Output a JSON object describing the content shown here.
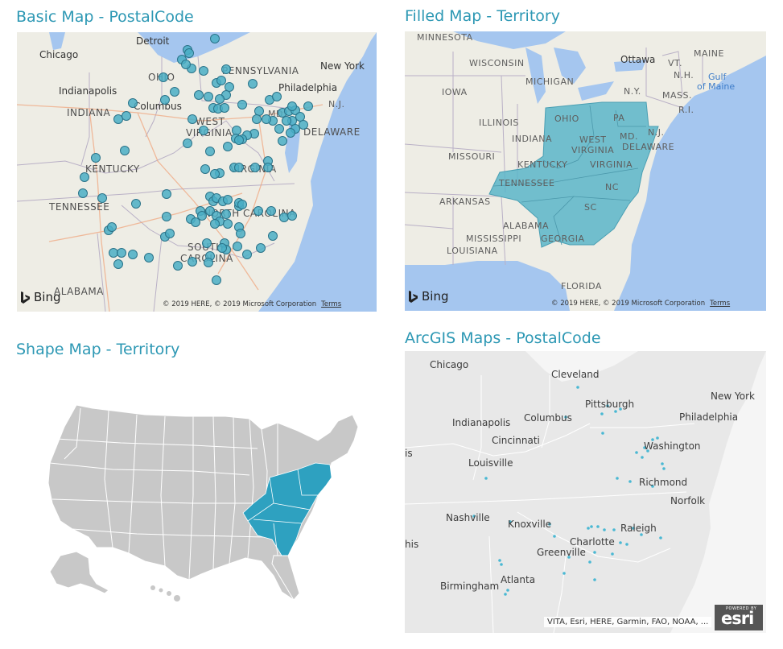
{
  "panels": {
    "basic": {
      "title": "Basic Map - PostalCode",
      "labels": {
        "detroit": "Detroit",
        "chicago": "Chicago",
        "pennsylvania": "PENNSYLVANIA",
        "new_york": "New York",
        "philadelphia": "Philadelphia",
        "ohio": "OHIO",
        "indianapolis": "Indianapolis",
        "columbus": "Columbus",
        "indiana": "INDIANA",
        "nj": "N.J.",
        "md": "MD.",
        "west_virginia_1": "WEST",
        "west_virginia_2": "VIRGINIA",
        "delaware": "DELAWARE",
        "kentucky": "KENTUCKY",
        "virginia": "VIRGINIA",
        "tennessee": "TENNESSEE",
        "north_carolina": "NORTH CAROLINA",
        "south": "SOUTH",
        "carolina": "CAROLINA",
        "alabama": "ALABAMA"
      },
      "bing": "Bing",
      "attribution": "© 2019 HERE, © 2019 Microsoft Corporation",
      "terms": "Terms"
    },
    "filled": {
      "title": "Filled Map - Territory",
      "labels": {
        "minnesota": "MINNESOTA",
        "wisconsin": "WISCONSIN",
        "ottawa": "Ottawa",
        "vt": "VT.",
        "maine": "MAINE",
        "nh": "N.H.",
        "gulf": "Gulf",
        "of_maine": "of Maine",
        "michigan": "MICHIGAN",
        "ny": "N.Y.",
        "mass": "MASS.",
        "ri": "R.I.",
        "iowa": "IOWA",
        "ohio": "OHIO",
        "pa": "PA",
        "illinois": "ILLINOIS",
        "indiana": "INDIANA",
        "nj": "N.J.",
        "west_virginia_1": "WEST",
        "west_virginia_2": "VIRGINIA",
        "md": "MD.",
        "delaware": "DELAWARE",
        "missouri": "MISSOURI",
        "kentucky": "KENTUCKY",
        "virginia": "VIRGINIA",
        "tennessee": "TENNESSEE",
        "nc": "NC",
        "arkansas": "ARKANSAS",
        "sc": "SC",
        "alabama": "ALABAMA",
        "mississippi": "MISSISSIPPI",
        "georgia": "GEORGIA",
        "louisiana": "LOUISIANA",
        "florida": "FLORIDA"
      },
      "bing": "Bing",
      "attribution": "© 2019 HERE, © 2019 Microsoft Corporation",
      "terms": "Terms"
    },
    "shape": {
      "title": "Shape Map - Territory"
    },
    "arcgis": {
      "title": "ArcGIS Maps - PostalCode",
      "labels": {
        "chicago": "Chicago",
        "cleveland": "Cleveland",
        "new_york": "New York",
        "pittsburgh": "Pittsburgh",
        "indianapolis": "Indianapolis",
        "columbus": "Columbus",
        "philadelphia": "Philadelphia",
        "cincinnati": "Cincinnati",
        "washington": "Washington",
        "is_1": "is",
        "louisville": "Louisville",
        "richmond": "Richmond",
        "norfolk": "Norfolk",
        "nashville": "Nashville",
        "knoxville": "Knoxville",
        "raleigh": "Raleigh",
        "charlotte": "Charlotte",
        "his": "his",
        "greenville": "Greenville",
        "atlanta": "Atlanta",
        "birmingham": "Birmingham"
      },
      "attribution": "VITA, Esri, HERE, Garmin, FAO, NOAA, ...",
      "esri_logo": "esri",
      "powered_by": "POWERED BY"
    }
  },
  "colors": {
    "title": "#2d98b4",
    "land": "#eeede5",
    "water": "#a5c6ef",
    "territory_fill": "#5bb5c9",
    "marker_fill": "#4aaec6",
    "marker_stroke": "#2a7389",
    "shape_default": "#c8c8c8",
    "shape_territory": "#2ea1c0",
    "esri_land": "#e8e8e8",
    "esri_water": "#f5f5f5"
  }
}
